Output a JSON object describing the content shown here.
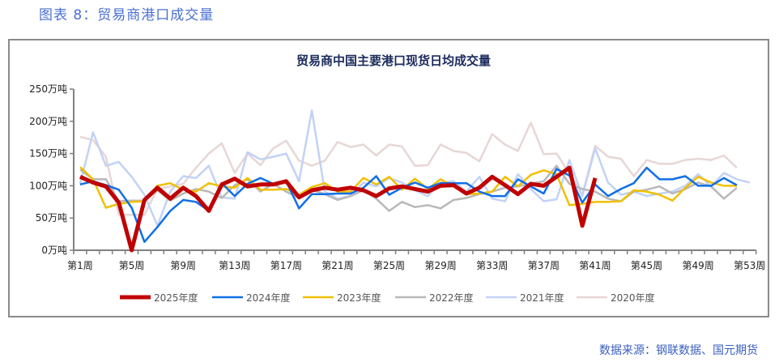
{
  "figure_title": "图表 8：贸易商港口成交量",
  "source": "数据来源：钢联数据、国元期货",
  "chart_data": {
    "type": "line",
    "title": "贸易商中国主要港口现货日均成交量",
    "xlabel": "",
    "ylabel": "",
    "ylim": [
      0,
      250
    ],
    "y_ticks": [
      "0万吨",
      "50万吨",
      "100万吨",
      "150万吨",
      "200万吨",
      "250万吨"
    ],
    "y_tick_values": [
      0,
      50,
      100,
      150,
      200,
      250
    ],
    "x_tick_labels": [
      "第1周",
      "第5周",
      "第9周",
      "第13周",
      "第17周",
      "第21周",
      "第25周",
      "第29周",
      "第33周",
      "第37周",
      "第41周",
      "第45周",
      "第49周",
      "第53周"
    ],
    "x_tick_weeks": [
      1,
      5,
      9,
      13,
      17,
      21,
      25,
      29,
      33,
      37,
      41,
      45,
      49,
      53
    ],
    "x_range_weeks": [
      1,
      53
    ],
    "grid": false,
    "legend_position": "bottom",
    "series": [
      {
        "name": "2025年度",
        "color": "#c00000",
        "width": 5,
        "values": [
          114,
          105,
          99,
          74,
          0,
          78,
          97,
          80,
          97,
          84,
          61,
          102,
          111,
          99,
          102,
          102,
          107,
          82,
          93,
          97,
          94,
          97,
          93,
          84,
          96,
          99,
          95,
          91,
          100,
          101,
          88,
          97,
          114,
          101,
          87,
          103,
          100,
          114,
          128,
          38,
          112
        ]
      },
      {
        "name": "2024年度",
        "color": "#0f6fe8",
        "width": 2.5,
        "values": [
          102,
          107,
          101,
          94,
          66,
          13,
          36,
          61,
          78,
          75,
          61,
          104,
          84,
          103,
          112,
          103,
          107,
          65,
          87,
          87,
          88,
          88,
          97,
          115,
          86,
          97,
          105,
          97,
          104,
          104,
          104,
          91,
          84,
          84,
          110,
          99,
          88,
          126,
          116,
          74,
          102,
          84,
          95,
          104,
          128,
          110,
          110,
          115,
          100,
          100,
          112,
          101
        ]
      },
      {
        "name": "2023年度",
        "color": "#f0c000",
        "width": 2.5,
        "values": [
          129,
          110,
          66,
          72,
          75,
          76,
          100,
          104,
          94,
          91,
          104,
          99,
          97,
          112,
          94,
          94,
          95,
          86,
          98,
          104,
          91,
          91,
          112,
          102,
          114,
          94,
          111,
          95,
          110,
          99,
          87,
          88,
          91,
          114,
          99,
          117,
          124,
          118,
          70,
          72,
          75,
          75,
          76,
          93,
          91,
          86,
          77,
          97,
          114,
          105,
          100,
          100
        ]
      },
      {
        "name": "2022年度",
        "color": "#b8b8b8",
        "width": 2.5,
        "values": [
          125,
          110,
          110,
          76,
          77,
          77,
          93,
          77,
          88,
          95,
          91,
          81,
          101,
          110,
          91,
          103,
          91,
          81,
          94,
          87,
          78,
          84,
          93,
          80,
          61,
          75,
          67,
          70,
          65,
          78,
          81,
          87,
          91,
          97,
          99,
          103,
          107,
          131,
          103,
          95,
          91,
          80,
          76,
          91,
          94,
          99,
          88,
          95,
          105,
          99,
          80,
          97
        ]
      },
      {
        "name": "2021年度",
        "color": "#c2d2f5",
        "width": 2.5,
        "values": [
          103,
          183,
          131,
          137,
          114,
          86,
          38,
          91,
          115,
          112,
          131,
          82,
          80,
          152,
          141,
          145,
          150,
          107,
          217,
          91,
          80,
          84,
          105,
          99,
          112,
          105,
          93,
          84,
          105,
          107,
          91,
          114,
          80,
          76,
          118,
          95,
          76,
          79,
          140,
          84,
          158,
          105,
          86,
          91,
          84,
          88,
          91,
          100,
          118,
          99,
          120,
          110,
          105
        ]
      },
      {
        "name": "2020年度",
        "color": "#e8d6d6",
        "width": 2.5,
        "values": [
          176,
          171,
          145,
          55,
          55,
          55,
          95,
          99,
          103,
          128,
          150,
          166,
          120,
          150,
          132,
          158,
          170,
          139,
          131,
          139,
          168,
          160,
          164,
          147,
          164,
          161,
          131,
          132,
          164,
          154,
          151,
          138,
          180,
          164,
          154,
          198,
          149,
          150,
          119,
          86,
          162,
          145,
          142,
          115,
          140,
          134,
          134,
          140,
          142,
          140,
          147,
          128
        ]
      }
    ]
  }
}
